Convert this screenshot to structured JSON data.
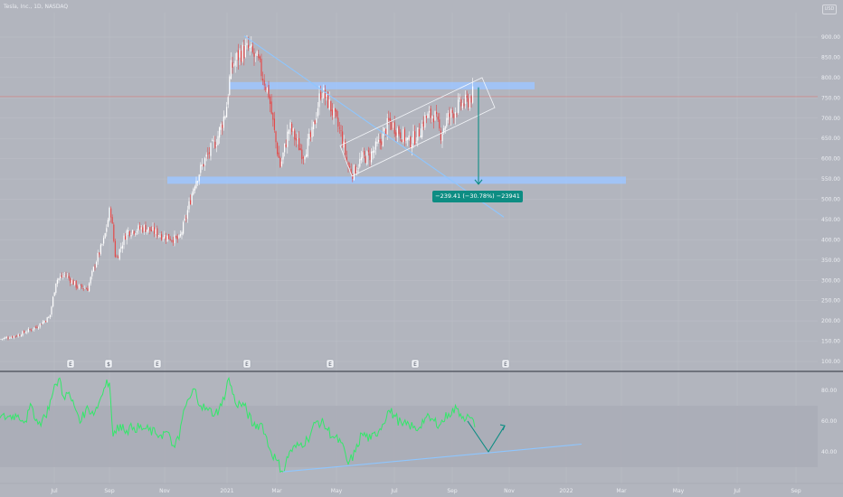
{
  "header": {
    "title": "Tesla, Inc., 1D, NASDAQ",
    "mode_badge": "USD"
  },
  "colors": {
    "background": "#b2b5be",
    "grid": "#bdc0c8",
    "axis_text": "#eceef2",
    "candle_up": "#ffffff",
    "candle_down": "#e34a4a",
    "rsi_line": "#33e86a",
    "trendline": "#8ec6ff",
    "zone": "#9ec6ff",
    "measure": "#0d8d83",
    "current_price_line": "#e56e6e",
    "divider": "#2a2e39"
  },
  "chart_data": [
    {
      "type": "candlestick",
      "price_axis": {
        "ticks": [
          100,
          150,
          200,
          250,
          300,
          350,
          400,
          450,
          500,
          550,
          600,
          650,
          700,
          750,
          800,
          850,
          900
        ],
        "labels": [
          "100.00",
          "150.00",
          "200.00",
          "250.00",
          "300.00",
          "350.00",
          "400.00",
          "450.00",
          "500.00",
          "550.00",
          "600.00",
          "650.00",
          "700.00",
          "750.00",
          "800.00",
          "850.00",
          "900.00"
        ],
        "ylim": [
          85,
          915
        ]
      },
      "time_axis": {
        "labels": [
          "Jul",
          "Sep",
          "Nov",
          "2021",
          "Mar",
          "May",
          "Jul",
          "Sep",
          "Nov",
          "2022",
          "Mar",
          "May",
          "Jul",
          "Sep"
        ]
      },
      "close_path": [
        [
          0,
          155
        ],
        [
          20,
          165
        ],
        [
          40,
          185
        ],
        [
          55,
          210
        ],
        [
          62,
          300
        ],
        [
          72,
          315
        ],
        [
          85,
          285
        ],
        [
          97,
          280
        ],
        [
          105,
          340
        ],
        [
          115,
          400
        ],
        [
          122,
          480
        ],
        [
          128,
          350
        ],
        [
          140,
          420
        ],
        [
          160,
          430
        ],
        [
          180,
          410
        ],
        [
          198,
          400
        ],
        [
          205,
          450
        ],
        [
          215,
          540
        ],
        [
          225,
          590
        ],
        [
          240,
          650
        ],
        [
          250,
          720
        ],
        [
          255,
          820
        ],
        [
          265,
          860
        ],
        [
          275,
          870
        ],
        [
          285,
          840
        ],
        [
          297,
          760
        ],
        [
          305,
          640
        ],
        [
          310,
          580
        ],
        [
          320,
          680
        ],
        [
          335,
          610
        ],
        [
          345,
          660
        ],
        [
          355,
          770
        ],
        [
          365,
          730
        ],
        [
          377,
          660
        ],
        [
          385,
          580
        ],
        [
          390,
          565
        ],
        [
          400,
          600
        ],
        [
          410,
          610
        ],
        [
          420,
          640
        ],
        [
          430,
          690
        ],
        [
          440,
          670
        ],
        [
          452,
          640
        ],
        [
          462,
          660
        ],
        [
          470,
          700
        ],
        [
          480,
          710
        ],
        [
          487,
          660
        ],
        [
          495,
          700
        ],
        [
          507,
          730
        ],
        [
          517,
          740
        ],
        [
          523,
          760
        ]
      ],
      "horizontal_zones": [
        {
          "from_x": 253,
          "to_x": 591,
          "price": 780
        },
        {
          "from_x": 185,
          "to_x": 692,
          "price": 547
        }
      ],
      "trendlines": [
        {
          "from": [
            270,
            903
          ],
          "to": [
            557,
            456
          ]
        }
      ],
      "channel": {
        "corners": [
          [
            376,
            632
          ],
          [
            533,
            800
          ],
          [
            547,
            726
          ],
          [
            389,
            557
          ]
        ]
      },
      "measure": {
        "x": 529,
        "from_price": 776,
        "to_price": 537,
        "label": "−239.41 (−30.78%) −23941"
      },
      "current_price": 753,
      "event_markers": [
        {
          "x": 78,
          "label": "E"
        },
        {
          "x": 120,
          "label": "$"
        },
        {
          "x": 174,
          "label": "E"
        },
        {
          "x": 273,
          "label": "E"
        },
        {
          "x": 365,
          "label": "E"
        },
        {
          "x": 459,
          "label": "E"
        },
        {
          "x": 559,
          "label": "E"
        }
      ]
    },
    {
      "type": "line",
      "title": "",
      "y_axis": {
        "ticks": [
          40,
          60,
          80
        ],
        "labels": [
          "40.00",
          "60.00",
          "80.00"
        ],
        "ylim": [
          24,
          93
        ],
        "band": [
          30,
          70
        ]
      },
      "series": [
        {
          "values": [
            [
              0,
              62
            ],
            [
              10,
              63
            ],
            [
              20,
              64
            ],
            [
              28,
              60
            ],
            [
              35,
              70
            ],
            [
              42,
              58
            ],
            [
              50,
              63
            ],
            [
              57,
              75
            ],
            [
              62,
              84
            ],
            [
              66,
              88
            ],
            [
              70,
              76
            ],
            [
              75,
              78
            ],
            [
              82,
              70
            ],
            [
              90,
              60
            ],
            [
              95,
              68
            ],
            [
              105,
              66
            ],
            [
              112,
              76
            ],
            [
              118,
              87
            ],
            [
              121,
              85
            ],
            [
              125,
              50
            ],
            [
              133,
              58
            ],
            [
              140,
              54
            ],
            [
              148,
              56
            ],
            [
              160,
              55
            ],
            [
              172,
              52
            ],
            [
              178,
              51
            ],
            [
              185,
              53
            ],
            [
              190,
              44
            ],
            [
              198,
              48
            ],
            [
              203,
              67
            ],
            [
              210,
              75
            ],
            [
              215,
              81
            ],
            [
              222,
              70
            ],
            [
              230,
              67
            ],
            [
              238,
              65
            ],
            [
              245,
              70
            ],
            [
              253,
              88
            ],
            [
              260,
              72
            ],
            [
              270,
              70
            ],
            [
              280,
              57
            ],
            [
              290,
              58
            ],
            [
              298,
              42
            ],
            [
              305,
              35
            ],
            [
              313,
              27
            ],
            [
              320,
              40
            ],
            [
              330,
              44
            ],
            [
              340,
              48
            ],
            [
              350,
              60
            ],
            [
              358,
              58
            ],
            [
              368,
              50
            ],
            [
              377,
              46
            ],
            [
              385,
              32
            ],
            [
              393,
              40
            ],
            [
              400,
              52
            ],
            [
              410,
              48
            ],
            [
              420,
              55
            ],
            [
              430,
              67
            ],
            [
              437,
              63
            ],
            [
              445,
              57
            ],
            [
              452,
              58
            ],
            [
              460,
              54
            ],
            [
              470,
              62
            ],
            [
              480,
              60
            ],
            [
              487,
              58
            ],
            [
              496,
              65
            ],
            [
              505,
              68
            ],
            [
              512,
              63
            ],
            [
              520,
              62
            ],
            [
              525,
              56
            ]
          ]
        }
      ],
      "projection": [
        [
          517,
          60
        ],
        [
          540,
          40
        ],
        [
          558,
          57
        ]
      ],
      "support_line": {
        "from": [
          313,
          27
        ],
        "to": [
          643,
          45
        ]
      }
    }
  ]
}
